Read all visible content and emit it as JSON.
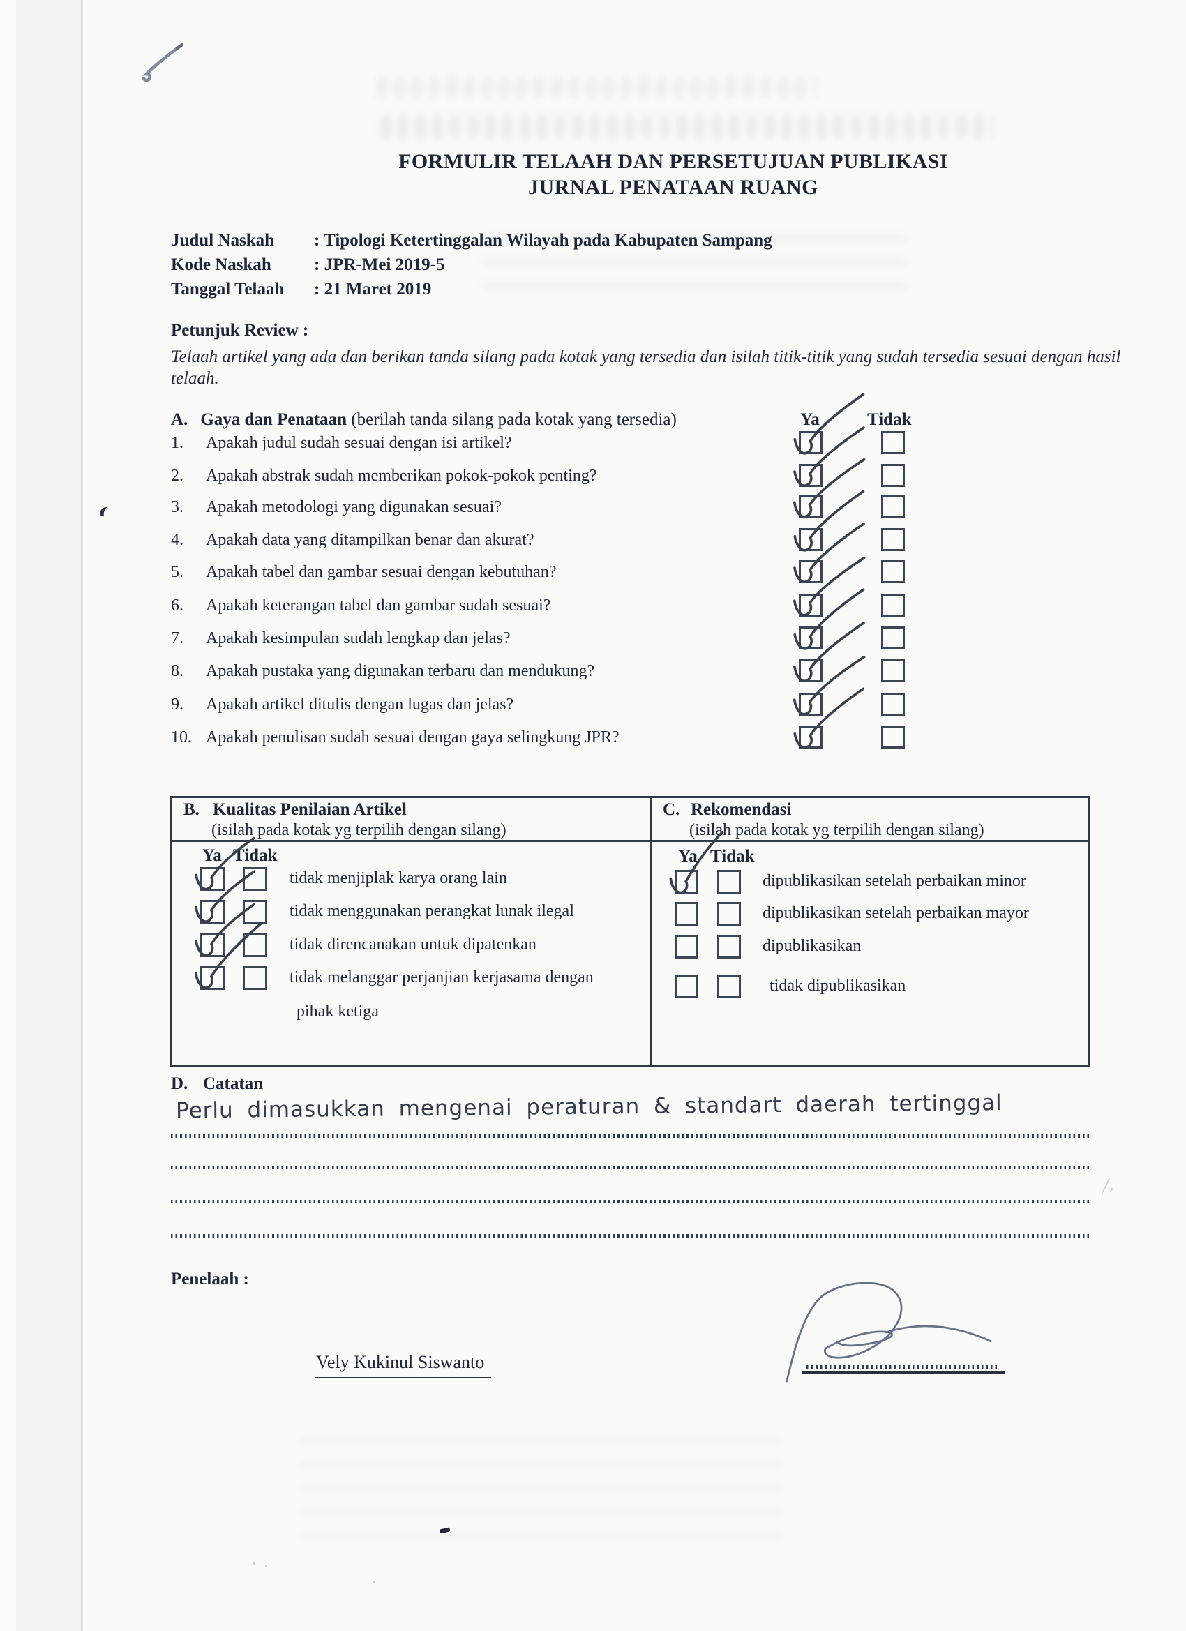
{
  "document": {
    "title_line1": "FORMULIR TELAAH DAN PERSETUJUAN PUBLIKASI",
    "title_line2": "JURNAL PENATAAN RUANG"
  },
  "metadata": [
    {
      "label": "Judul Naskah",
      "sep": ":",
      "value": "Tipologi Ketertinggalan Wilayah pada Kabupaten Sampang"
    },
    {
      "label": "Kode Naskah",
      "sep": ":",
      "value": "JPR-Mei 2019-5"
    },
    {
      "label": "Tanggal Telaah",
      "sep": ":",
      "value": "21 Maret 2019"
    }
  ],
  "instructions": {
    "heading": "Petunjuk Review :",
    "body": "Telaah artikel yang ada dan berikan tanda silang pada kotak yang tersedia dan isilah titik-titik yang sudah tersedia sesuai dengan hasil telaah."
  },
  "section_a": {
    "letter": "A.",
    "heading": "Gaya dan Penataan",
    "heading_note": "(berilah tanda silang pada kotak yang tersedia)",
    "col_yes": "Ya",
    "col_no": "Tidak",
    "questions": [
      {
        "num": "1.",
        "text": "Apakah judul sudah sesuai dengan isi artikel?",
        "ya": true,
        "tidak": false
      },
      {
        "num": "2.",
        "text": "Apakah abstrak sudah memberikan pokok-pokok penting?",
        "ya": true,
        "tidak": false
      },
      {
        "num": "3.",
        "text": "Apakah metodologi yang digunakan sesuai?",
        "ya": true,
        "tidak": false
      },
      {
        "num": "4.",
        "text": "Apakah data yang ditampilkan benar dan akurat?",
        "ya": true,
        "tidak": false
      },
      {
        "num": "5.",
        "text": "Apakah tabel dan gambar sesuai dengan kebutuhan?",
        "ya": true,
        "tidak": false
      },
      {
        "num": "6.",
        "text": "Apakah keterangan tabel dan gambar sudah sesuai?",
        "ya": true,
        "tidak": false
      },
      {
        "num": "7.",
        "text": "Apakah kesimpulan sudah lengkap dan jelas?",
        "ya": true,
        "tidak": false
      },
      {
        "num": "8.",
        "text": "Apakah pustaka yang digunakan terbaru dan mendukung?",
        "ya": true,
        "tidak": false
      },
      {
        "num": "9.",
        "text": "Apakah artikel ditulis dengan lugas dan jelas?",
        "ya": true,
        "tidak": false
      },
      {
        "num": "10.",
        "text": "Apakah penulisan sudah sesuai dengan gaya selingkung JPR?",
        "ya": true,
        "tidak": false
      }
    ]
  },
  "section_b": {
    "letter": "B.",
    "heading": "Kualitas Penilaian Artikel",
    "note": "(isilah pada kotak yg terpilih dengan silang)",
    "col_yes": "Ya",
    "col_no": "Tidak",
    "items": [
      {
        "text": "tidak menjiplak karya orang lain",
        "text2": "",
        "ya": true,
        "tidak": false
      },
      {
        "text": "tidak menggunakan perangkat lunak ilegal",
        "text2": "",
        "ya": true,
        "tidak": false
      },
      {
        "text": "tidak direncanakan untuk dipatenkan",
        "text2": "",
        "ya": true,
        "tidak": false
      },
      {
        "text": "tidak melanggar perjanjian kerjasama dengan",
        "text2": "pihak ketiga",
        "ya": true,
        "tidak": false
      }
    ]
  },
  "section_c": {
    "letter": "C.",
    "heading": "Rekomendasi",
    "note": "(isilah pada kotak yg terpilih dengan silang)",
    "col_yes": "Ya",
    "col_no": "Tidak",
    "items": [
      {
        "text": "dipublikasikan setelah perbaikan minor",
        "ya": true,
        "tidak": false
      },
      {
        "text": "dipublikasikan setelah perbaikan mayor",
        "ya": false,
        "tidak": false
      },
      {
        "text": "dipublikasikan",
        "ya": false,
        "tidak": false
      },
      {
        "text": "tidak dipublikasikan",
        "ya": false,
        "tidak": false
      }
    ]
  },
  "section_d": {
    "letter": "D.",
    "heading": "Catatan",
    "handwritten_note": "Perlu dimasukkan mengenai peraturan & standart daerah tertinggal"
  },
  "footer": {
    "reviewer_label": "Penelaah :",
    "reviewer_name": "Vely Kukinul Siswanto"
  },
  "colors": {
    "ink": "#20263a",
    "box_border": "#3e4556",
    "pen_check": "#39404e",
    "signature": "#5f6b84",
    "paper": "#fafaf8"
  }
}
